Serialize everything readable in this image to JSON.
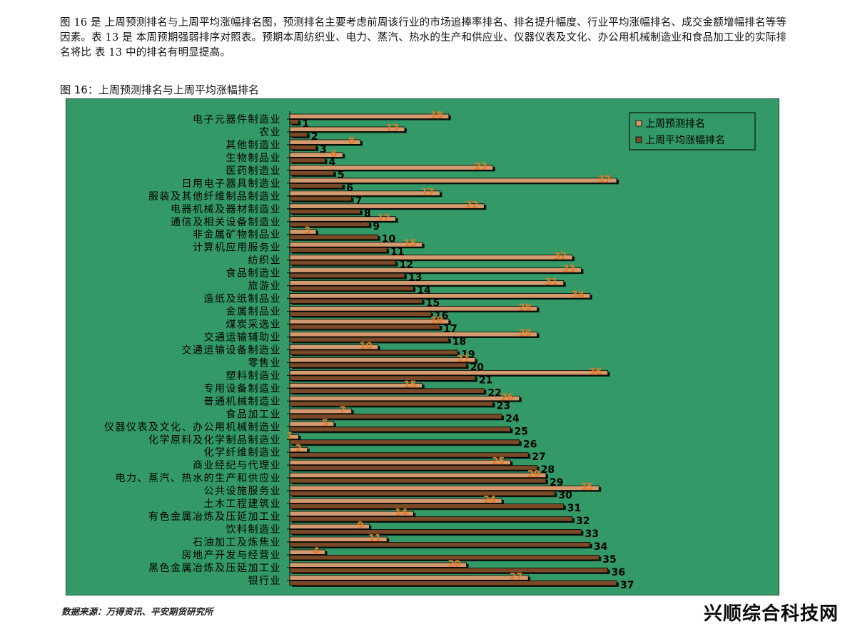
{
  "intro_text": "图 16 是 上周预测排名与上周平均涨幅排名图，预测排名主要考虑前周该行业的市场追捧率排名、排名提升幅度、行业平均涨幅排名、成交金额增幅排名等等因素。表 13 是 本周预期强弱排序对照表。预期本周纺织业、电力、蒸汽、热水的生产和供应业、仪器仪表及文化、办公用机械制造业和食品加工业的实际排名将比 表 13 中的排名有明显提高。",
  "figure_title": "图 16：上周预测排名与上周平均涨幅排名",
  "source_text": "数据来源：万得资讯、平安期货研究所",
  "watermark_text": "兴顺综合科技网",
  "colors": {
    "plot_bg": "#339966",
    "pred_bar": "#d49a6f",
    "avg_bar": "#7a4a28",
    "pred_label": "#e27a25",
    "avg_label": "#000000"
  },
  "chart_data": {
    "type": "bar",
    "orientation": "horizontal",
    "legend_position": "top-right",
    "grid": false,
    "xlim": [
      0,
      37
    ],
    "categories": [
      "电子元器件制造业",
      "农业",
      "其他制造业",
      "生物制品业",
      "医药制造业",
      "日用电子器具制造业",
      "服装及其他纤维制品制造业",
      "电器机械及器材制造业",
      "通信及相关设备制造业",
      "非金属矿物制品业",
      "计算机应用服务业",
      "纺织业",
      "食品制造业",
      "旅游业",
      "造纸及纸制品业",
      "金属制品业",
      "煤炭采选业",
      "交通运输辅助业",
      "交通运输设备制造业",
      "零售业",
      "塑料制造业",
      "专用设备制造业",
      "普通机械制造业",
      "食品加工业",
      "仪器仪表及文化、办公用机械制造业",
      "化学原料及化学制品制造业",
      "化学纤维制造业",
      "商业经纪与代理业",
      "电力、蒸汽、热水的生产和供应业",
      "公共设施服务业",
      "土木工程建筑业",
      "有色金属冶炼及压延加工业",
      "饮料制造业",
      "石油加工及炼焦业",
      "房地产开发与经营业",
      "黑色金属冶炼及压延加工业",
      "银行业"
    ],
    "series": [
      {
        "name": "上周预测排名",
        "values": [
          18,
          13,
          8,
          6,
          23,
          37,
          17,
          22,
          12,
          3,
          15,
          32,
          33,
          31,
          34,
          28,
          18,
          28,
          10,
          21,
          36,
          15,
          26,
          7,
          5,
          1,
          2,
          25,
          29,
          35,
          24,
          14,
          9,
          11,
          4,
          20,
          27
        ]
      },
      {
        "name": "上周平均涨幅排名",
        "values": [
          1,
          2,
          3,
          4,
          5,
          6,
          7,
          8,
          9,
          10,
          11,
          12,
          13,
          14,
          15,
          16,
          17,
          18,
          19,
          20,
          21,
          22,
          23,
          24,
          25,
          26,
          27,
          28,
          29,
          30,
          31,
          32,
          33,
          34,
          35,
          36,
          37
        ]
      }
    ]
  }
}
